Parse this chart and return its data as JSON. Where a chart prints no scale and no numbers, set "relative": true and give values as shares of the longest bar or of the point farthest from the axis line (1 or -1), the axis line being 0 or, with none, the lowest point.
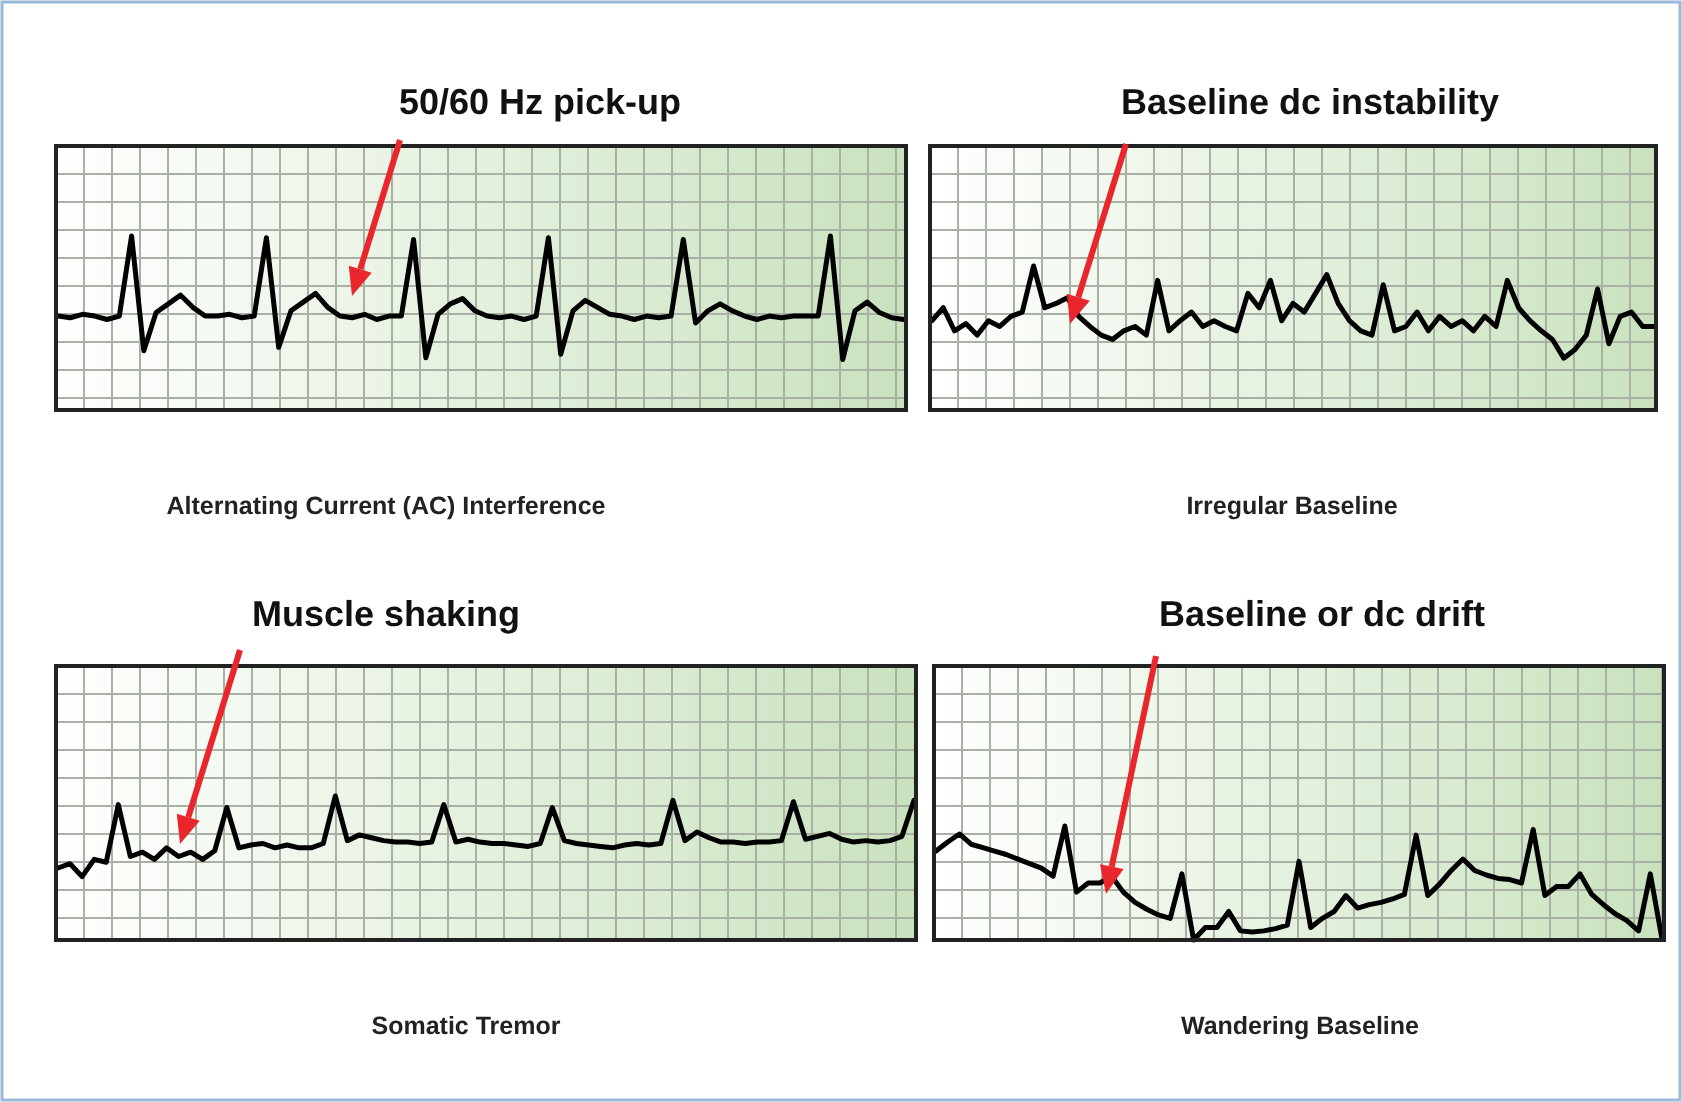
{
  "chart_data": [
    {
      "type": "line",
      "relative": true,
      "grid": true,
      "title": "Alternating Current (AC) Interference",
      "annotations": [
        "50/60 Hz pick-up"
      ],
      "categories": [
        null,
        null,
        null,
        null,
        null,
        null,
        null,
        null,
        null,
        null,
        null,
        null,
        null,
        null,
        null,
        null,
        null,
        null,
        null,
        null,
        null,
        null,
        null,
        null,
        null,
        null,
        null,
        null,
        null,
        null,
        null,
        null,
        null,
        null,
        null,
        null,
        null,
        null,
        null,
        null,
        null,
        null,
        null,
        null,
        null,
        null,
        null,
        null,
        null,
        null,
        null,
        null,
        null,
        null,
        null,
        null,
        null,
        null,
        null,
        null,
        null,
        null,
        null,
        null,
        null,
        null,
        null,
        null,
        null,
        null
      ],
      "series": [
        {
          "color": "#000000",
          "values": [
            0.54,
            0.53,
            0.55,
            0.54,
            0.52,
            0.54,
            1,
            0.34,
            0.56,
            0.61,
            0.66,
            0.59,
            0.54,
            0.54,
            0.55,
            0.53,
            0.54,
            0.99,
            0.36,
            0.57,
            0.62,
            0.67,
            0.59,
            0.54,
            0.53,
            0.55,
            0.52,
            0.54,
            0.54,
            0.98,
            0.3,
            0.55,
            0.61,
            0.64,
            0.57,
            0.54,
            0.53,
            0.54,
            0.52,
            0.54,
            0.99,
            0.32,
            0.57,
            0.63,
            0.59,
            0.55,
            0.54,
            0.52,
            0.54,
            0.53,
            0.54,
            0.98,
            0.5,
            0.57,
            0.61,
            0.57,
            0.54,
            0.52,
            0.54,
            0.53,
            0.54,
            0.54,
            0.54,
            1,
            0.29,
            0.57,
            0.62,
            0.56,
            0.53,
            0.52
          ]
        }
      ]
    },
    {
      "type": "line",
      "relative": true,
      "grid": true,
      "title": "Irregular Baseline",
      "annotations": [
        "Baseline dc instability"
      ],
      "categories": [
        null,
        null,
        null,
        null,
        null,
        null,
        null,
        null,
        null,
        null,
        null,
        null,
        null,
        null,
        null,
        null,
        null,
        null,
        null,
        null,
        null,
        null,
        null,
        null,
        null,
        null,
        null,
        null,
        null,
        null,
        null,
        null,
        null,
        null,
        null,
        null,
        null,
        null,
        null,
        null,
        null,
        null,
        null,
        null,
        null,
        null,
        null,
        null,
        null,
        null,
        null,
        null,
        null,
        null,
        null,
        null,
        null,
        null,
        null,
        null,
        null,
        null,
        null,
        null,
        null
      ],
      "series": [
        {
          "color": "#000000",
          "values": [
            0.62,
            0.71,
            0.55,
            0.6,
            0.52,
            0.62,
            0.58,
            0.65,
            0.68,
            1,
            0.71,
            0.74,
            0.78,
            0.65,
            0.58,
            0.52,
            0.49,
            0.55,
            0.58,
            0.52,
            0.9,
            0.55,
            0.62,
            0.68,
            0.58,
            0.62,
            0.58,
            0.55,
            0.81,
            0.71,
            0.9,
            0.62,
            0.74,
            0.68,
            0.81,
            0.94,
            0.74,
            0.62,
            0.55,
            0.52,
            0.87,
            0.55,
            0.58,
            0.68,
            0.55,
            0.65,
            0.58,
            0.62,
            0.55,
            0.65,
            0.58,
            0.9,
            0.71,
            0.62,
            0.55,
            0.49,
            0.36,
            0.42,
            0.52,
            0.84,
            0.46,
            0.65,
            0.68,
            0.58,
            0.58
          ]
        }
      ]
    },
    {
      "type": "line",
      "relative": true,
      "grid": true,
      "title": "Somatic Tremor",
      "annotations": [
        "Muscle shaking"
      ],
      "categories": [
        null,
        null,
        null,
        null,
        null,
        null,
        null,
        null,
        null,
        null,
        null,
        null,
        null,
        null,
        null,
        null,
        null,
        null,
        null,
        null,
        null,
        null,
        null,
        null,
        null,
        null,
        null,
        null,
        null,
        null,
        null,
        null,
        null,
        null,
        null,
        null,
        null,
        null,
        null,
        null,
        null,
        null,
        null,
        null,
        null,
        null,
        null,
        null,
        null,
        null,
        null,
        null,
        null,
        null,
        null,
        null,
        null,
        null,
        null,
        null,
        null,
        null,
        null,
        null,
        null,
        null,
        null,
        null,
        null,
        null,
        null,
        null
      ],
      "series": [
        {
          "color": "#000000",
          "values": [
            0.5,
            0.53,
            0.44,
            0.56,
            0.54,
            0.94,
            0.58,
            0.61,
            0.56,
            0.64,
            0.58,
            0.61,
            0.56,
            0.62,
            0.92,
            0.64,
            0.66,
            0.67,
            0.64,
            0.66,
            0.64,
            0.64,
            0.67,
            1,
            0.69,
            0.73,
            0.71,
            0.69,
            0.68,
            0.68,
            0.67,
            0.68,
            0.94,
            0.68,
            0.7,
            0.68,
            0.67,
            0.67,
            0.66,
            0.65,
            0.67,
            0.92,
            0.69,
            0.67,
            0.66,
            0.65,
            0.64,
            0.66,
            0.67,
            0.66,
            0.67,
            0.97,
            0.69,
            0.75,
            0.71,
            0.68,
            0.68,
            0.67,
            0.68,
            0.68,
            0.69,
            0.96,
            0.7,
            0.72,
            0.74,
            0.7,
            0.68,
            0.69,
            0.68,
            0.69,
            0.72,
            0.97
          ]
        }
      ]
    },
    {
      "type": "line",
      "relative": true,
      "grid": true,
      "title": "Wandering Baseline",
      "annotations": [
        "Baseline or dc drift"
      ],
      "categories": [
        null,
        null,
        null,
        null,
        null,
        null,
        null,
        null,
        null,
        null,
        null,
        null,
        null,
        null,
        null,
        null,
        null,
        null,
        null,
        null,
        null,
        null,
        null,
        null,
        null,
        null,
        null,
        null,
        null,
        null,
        null,
        null,
        null,
        null,
        null,
        null,
        null,
        null,
        null,
        null,
        null,
        null,
        null,
        null,
        null,
        null,
        null,
        null,
        null,
        null,
        null,
        null,
        null,
        null,
        null,
        null,
        null,
        null,
        null,
        null,
        null,
        null,
        null
      ],
      "series": [
        {
          "color": "#000000",
          "values": [
            0.78,
            0.86,
            0.93,
            0.84,
            0.81,
            0.78,
            0.75,
            0.71,
            0.67,
            0.63,
            0.56,
            1,
            0.42,
            0.5,
            0.5,
            0.56,
            0.42,
            0.33,
            0.27,
            0.22,
            0.19,
            0.58,
            0,
            0.11,
            0.11,
            0.25,
            0.08,
            0.07,
            0.08,
            0.1,
            0.13,
            0.69,
            0.11,
            0.19,
            0.25,
            0.39,
            0.28,
            0.31,
            0.33,
            0.36,
            0.4,
            0.92,
            0.39,
            0.49,
            0.61,
            0.71,
            0.61,
            0.57,
            0.54,
            0.53,
            0.5,
            0.97,
            0.39,
            0.47,
            0.47,
            0.58,
            0.4,
            0.31,
            0.23,
            0.17,
            0.08,
            0.58,
            0.01
          ]
        }
      ]
    }
  ]
}
